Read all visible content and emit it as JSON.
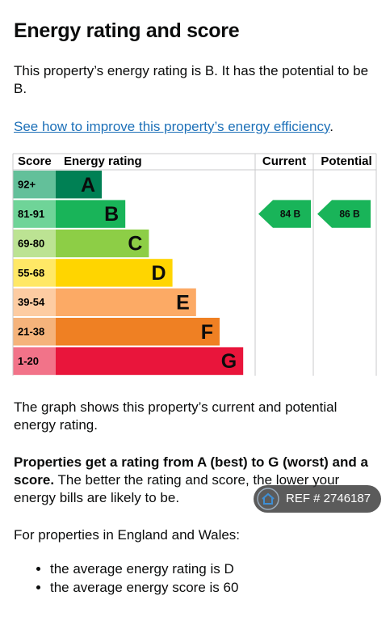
{
  "title": "Energy rating and score",
  "intro": "This property’s energy rating is B. It has the potential to be B.",
  "link": {
    "text": "See how to improve this property’s energy efficiency",
    "suffix": "."
  },
  "rating_chart": {
    "headers": {
      "score": "Score",
      "rating": "Energy rating",
      "current": "Current",
      "potential": "Potential"
    },
    "bands": [
      {
        "score": "92+",
        "letter": "A",
        "color": "#008054",
        "score_color": "#63c09a"
      },
      {
        "score": "81-91",
        "letter": "B",
        "color": "#19b459",
        "score_color": "#6fd498"
      },
      {
        "score": "69-80",
        "letter": "C",
        "color": "#8dce46",
        "score_color": "#bce393"
      },
      {
        "score": "55-68",
        "letter": "D",
        "color": "#ffd500",
        "score_color": "#ffe866"
      },
      {
        "score": "39-54",
        "letter": "E",
        "color": "#fcaa65",
        "score_color": "#fdcca2"
      },
      {
        "score": "21-38",
        "letter": "F",
        "color": "#ef8023",
        "score_color": "#f5b37b"
      },
      {
        "score": "1-20",
        "letter": "G",
        "color": "#e9153b",
        "score_color": "#f27389"
      }
    ],
    "current": {
      "score": 84,
      "rating": "B"
    },
    "potential": {
      "score": 86,
      "rating": "B"
    }
  },
  "graph_note": "The graph shows this property’s current and potential energy rating.",
  "rating_explanation": {
    "bold": "Properties get a rating from A (best) to G (worst) and a score.",
    "text": "The better the rating and score, the lower your energy bills are likely to be."
  },
  "region_intro": "For properties in England and Wales:",
  "averages": [
    "the average energy rating is D",
    "the average energy score is 60"
  ],
  "badge": {
    "text": "REF # 2746187"
  }
}
